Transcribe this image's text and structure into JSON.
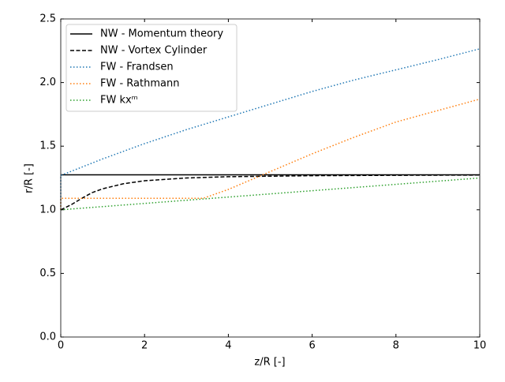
{
  "chart_data": {
    "type": "line",
    "xlabel": "z/R [-]",
    "ylabel": "r/R [-]",
    "xlim": [
      0,
      10
    ],
    "ylim": [
      0,
      2.5
    ],
    "xticks": [
      0,
      2,
      4,
      6,
      8,
      10
    ],
    "yticks": [
      {
        "value": 0,
        "label": "0.0"
      },
      {
        "value": 0.5,
        "label": "0.5"
      },
      {
        "value": 1,
        "label": "1.0"
      },
      {
        "value": 1.5,
        "label": "1.5"
      },
      {
        "value": 2,
        "label": "2.0"
      },
      {
        "value": 2.5,
        "label": "2.5"
      }
    ],
    "legend": "upper left",
    "series": [
      {
        "name": "NW - Momentum theory",
        "color": "#000000",
        "dash": "solid",
        "x": [
          0,
          10
        ],
        "values": [
          1.275,
          1.275
        ]
      },
      {
        "name": "NW - Vortex Cylinder",
        "color": "#000000",
        "dash": "dashed",
        "x": [
          0,
          0.25,
          0.5,
          0.75,
          1,
          1.5,
          2,
          3,
          4,
          6,
          8,
          10
        ],
        "values": [
          1.0,
          1.04,
          1.09,
          1.135,
          1.165,
          1.205,
          1.228,
          1.25,
          1.26,
          1.268,
          1.271,
          1.273
        ]
      },
      {
        "name": "FW - Frandsen",
        "color": "#1f77b4",
        "dash": "dotted",
        "x": [
          0,
          0,
          1,
          2,
          3,
          4,
          5,
          6,
          7,
          8,
          9,
          10
        ],
        "values": [
          1.0,
          1.27,
          1.4,
          1.52,
          1.63,
          1.73,
          1.83,
          1.93,
          2.02,
          2.1,
          2.18,
          2.265
        ]
      },
      {
        "name": "FW - Rathmann",
        "color": "#ff7f0e",
        "dash": "dotted",
        "x": [
          0,
          0,
          3.4,
          4,
          5,
          6,
          7,
          8,
          9,
          10
        ],
        "values": [
          1.0,
          1.09,
          1.09,
          1.16,
          1.3,
          1.44,
          1.57,
          1.69,
          1.78,
          1.87
        ]
      },
      {
        "name": "FW kxᵐ",
        "color": "#2ca02c",
        "dash": "dotted",
        "x": [
          0,
          2,
          4,
          6,
          8,
          10
        ],
        "values": [
          1.0,
          1.05,
          1.1,
          1.15,
          1.2,
          1.25
        ]
      }
    ]
  }
}
